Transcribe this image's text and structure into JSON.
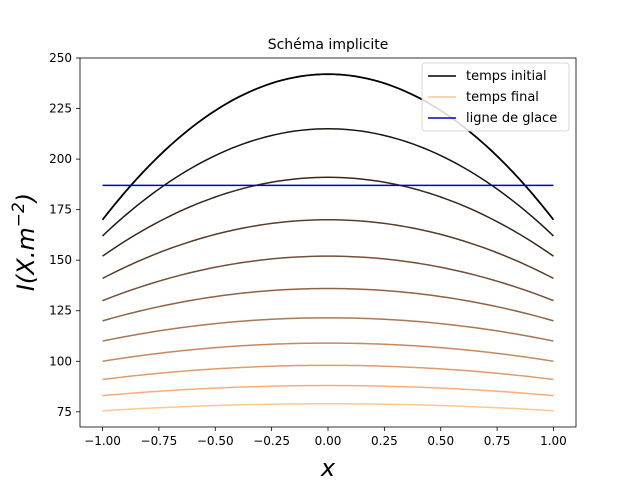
{
  "chart_data": {
    "type": "line",
    "title": "Schéma implicite",
    "xlabel": "x",
    "ylabel_prefix": "I(X.m",
    "ylabel_exp": "−2",
    "ylabel_suffix": ")",
    "xlim": [
      -1.1,
      1.1
    ],
    "ylim": [
      67.5,
      250
    ],
    "xticks": [
      -1.0,
      -0.75,
      -0.5,
      -0.25,
      0.0,
      0.25,
      0.5,
      0.75,
      1.0
    ],
    "xtick_labels": [
      "−1.00",
      "−0.75",
      "−0.50",
      "−0.25",
      "0.00",
      "0.25",
      "0.50",
      "0.75",
      "1.00"
    ],
    "yticks": [
      75,
      100,
      125,
      150,
      175,
      200,
      225,
      250
    ],
    "ytick_labels": [
      "75",
      "100",
      "125",
      "150",
      "175",
      "200",
      "225",
      "250"
    ],
    "grid": false,
    "legend_position": "top-right",
    "legend": [
      {
        "label": "temps initial",
        "color": "#000000"
      },
      {
        "label": "temps final",
        "color": "#fdc78e"
      },
      {
        "label": "ligne de glace",
        "color": "#0000cd"
      }
    ],
    "ice_line": {
      "y": 187,
      "x_range": [
        -1.0,
        1.0
      ],
      "color": "#0000cd"
    },
    "curves": [
      {
        "center": 242,
        "edge": 170,
        "color": "#000000"
      },
      {
        "center": 215,
        "edge": 162,
        "color": "#1e150e"
      },
      {
        "center": 191,
        "edge": 152,
        "color": "#3a281b"
      },
      {
        "center": 170,
        "edge": 141,
        "color": "#583d29"
      },
      {
        "center": 152,
        "edge": 130,
        "color": "#754f36"
      },
      {
        "center": 136,
        "edge": 120,
        "color": "#926343"
      },
      {
        "center": 121.5,
        "edge": 110,
        "color": "#ae7650"
      },
      {
        "center": 109,
        "edge": 100,
        "color": "#c9885c"
      },
      {
        "center": 98,
        "edge": 91,
        "color": "#e39a69"
      },
      {
        "center": 88,
        "edge": 83,
        "color": "#fbad79"
      },
      {
        "center": 79,
        "edge": 75.5,
        "color": "#fdc78e"
      }
    ]
  }
}
